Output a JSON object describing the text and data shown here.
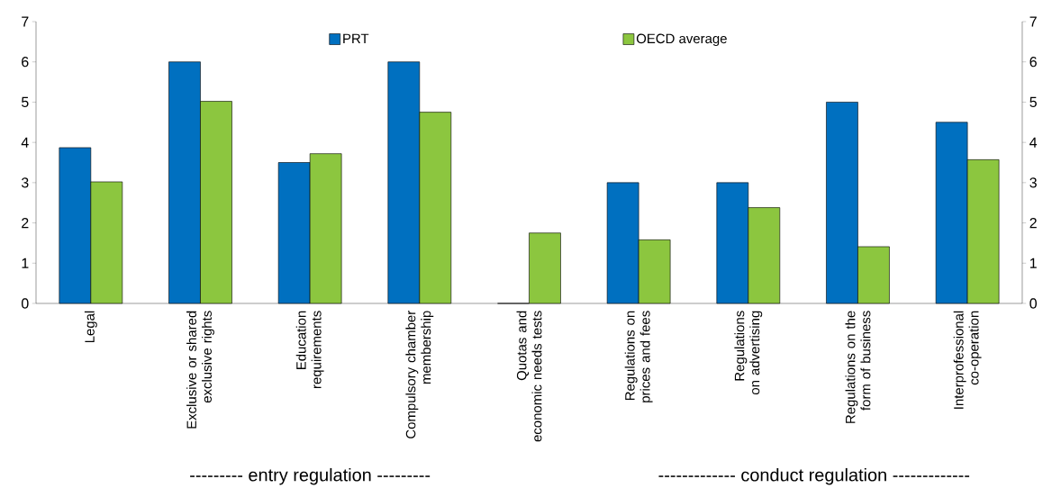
{
  "chart_data": {
    "type": "bar",
    "categories": [
      "Legal",
      "Exclusive or shared exclusive rights",
      "Education requirements",
      "Compulsory chamber membership",
      "Quotas and economic needs tests",
      "Regulations on prices and fees",
      "Regulations on advertising",
      "Regulations on the form of business",
      "Interprofessional co-operation"
    ],
    "series": [
      {
        "name": "PRT",
        "color": "#0070c0",
        "values": [
          3.87,
          6,
          3.5,
          6,
          0,
          3,
          3,
          5,
          4.5
        ]
      },
      {
        "name": "OECD average",
        "color": "#8cc63f",
        "values": [
          3.02,
          5.02,
          3.72,
          4.75,
          1.75,
          1.58,
          2.38,
          1.41,
          3.57
        ]
      }
    ],
    "ylim": [
      0,
      7
    ],
    "yticks": [
      0,
      1,
      2,
      3,
      4,
      5,
      6,
      7
    ],
    "y2lim": [
      0,
      7
    ],
    "y2ticks": [
      0,
      1,
      2,
      3,
      4,
      5,
      6,
      7
    ],
    "legend": "top",
    "annotations": [
      "--------- entry regulation ---------",
      "------------- conduct regulation -------------"
    ]
  }
}
